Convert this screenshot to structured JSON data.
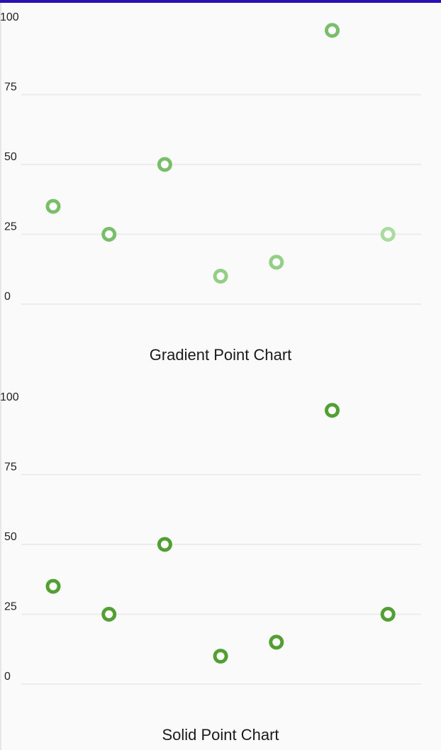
{
  "colors": {
    "top_bar": "#2a0fb4",
    "grid": "#ececec",
    "gradient_points": [
      "#79be6a",
      "#79be6a",
      "#79be6a",
      "#93cf86",
      "#93cf86",
      "#79be6a",
      "#aadca0"
    ],
    "solid_point": "#52a033"
  },
  "chart_data": [
    {
      "type": "scatter",
      "title": "Gradient Point Chart",
      "x": [
        1,
        2,
        3,
        4,
        5,
        6,
        7
      ],
      "y": [
        35,
        25,
        50,
        10,
        15,
        98,
        25
      ],
      "ylim": [
        0,
        100
      ],
      "yticks": [
        "0",
        "25",
        "50",
        "75",
        "100"
      ],
      "grid": true,
      "marker": "ring"
    },
    {
      "type": "scatter",
      "title": "Solid Point Chart",
      "x": [
        1,
        2,
        3,
        4,
        5,
        6,
        7
      ],
      "y": [
        35,
        25,
        50,
        10,
        15,
        98,
        25
      ],
      "ylim": [
        0,
        100
      ],
      "yticks": [
        "0",
        "25",
        "50",
        "75",
        "100"
      ],
      "grid": true,
      "marker": "ring"
    }
  ]
}
